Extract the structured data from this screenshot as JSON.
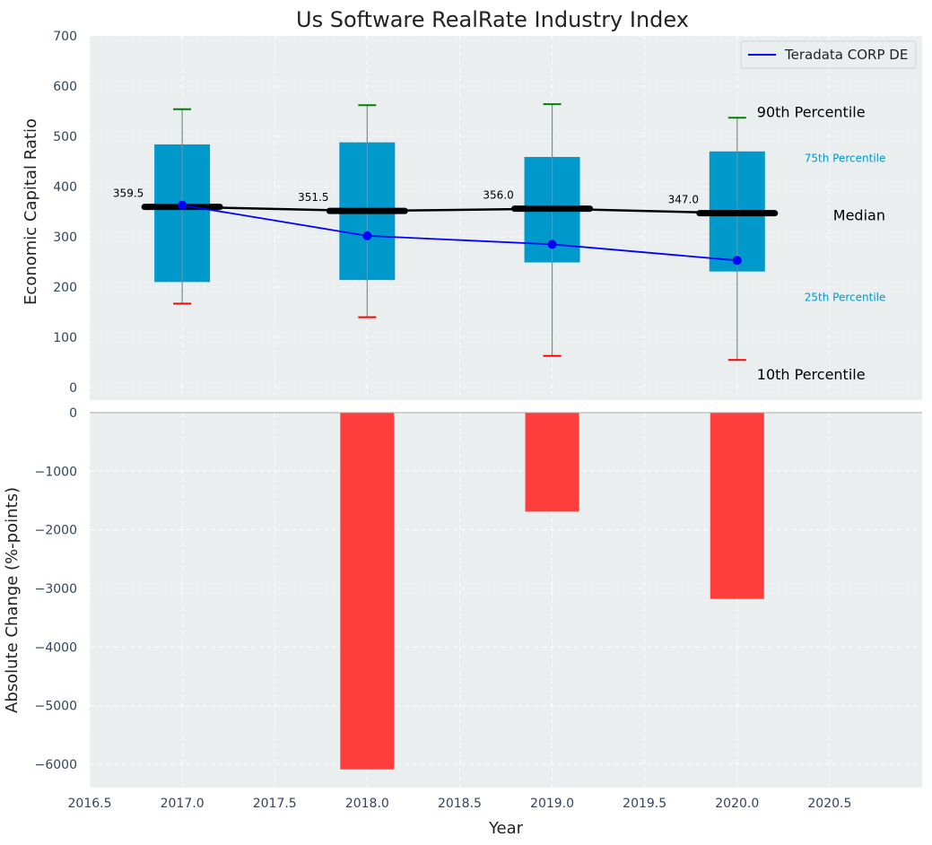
{
  "chart_data": [
    {
      "type": "box",
      "title": "Us Software RealRate Industry Index",
      "xlabel": "",
      "ylabel": "Economic Capital Ratio",
      "xlim": [
        2016.5,
        2021.0
      ],
      "ylim": [
        0,
        700
      ],
      "y_ticks": [
        "700",
        "600",
        "500",
        "400",
        "300",
        "200",
        "100",
        "0"
      ],
      "y_tick_values": [
        700,
        600,
        500,
        400,
        300,
        200,
        100,
        0
      ],
      "grid": true,
      "legend_position": "top-right",
      "legend": [
        {
          "label": "Teradata CORP DE",
          "color": "#0000ff"
        }
      ],
      "boxes": [
        {
          "x": 2017.0,
          "p10": 167,
          "p25": 210,
          "p75": 484,
          "p90": 554,
          "median": 359.5,
          "median_label": "359.5"
        },
        {
          "x": 2018.0,
          "p10": 140,
          "p25": 214,
          "p75": 488,
          "p90": 562,
          "median": 351.5,
          "median_label": "351.5"
        },
        {
          "x": 2019.0,
          "p10": 63,
          "p25": 249,
          "p75": 459,
          "p90": 564,
          "median": 356.0,
          "median_label": "356.0"
        },
        {
          "x": 2020.0,
          "p10": 55,
          "p25": 231,
          "p75": 470,
          "p90": 537,
          "median": 347.0,
          "median_label": "347.0"
        }
      ],
      "series": [
        {
          "name": "Teradata CORP DE",
          "x": [
            2017.0,
            2018.0,
            2019.0,
            2020.0
          ],
          "values": [
            363,
            302,
            285,
            253
          ],
          "color": "#0000ff"
        }
      ],
      "median_line_color": "#000000",
      "box_color": "#0099cc",
      "upper_whisker_cap_color": "#008000",
      "lower_whisker_cap_color": "#ff0000",
      "annotations": [
        {
          "text": "90th Percentile",
          "color": "#000000"
        },
        {
          "text": "75th Percentile",
          "color": "#0099cc"
        },
        {
          "text": "Median",
          "color": "#000000"
        },
        {
          "text": "25th Percentile",
          "color": "#0099cc"
        },
        {
          "text": "10th Percentile",
          "color": "#000000"
        }
      ]
    },
    {
      "type": "bar",
      "title": "",
      "xlabel": "Year",
      "ylabel": "Absolute Change (%-points)",
      "xlim": [
        2016.5,
        2021.0
      ],
      "ylim": [
        -6400,
        0
      ],
      "x_ticks": [
        "2016.5",
        "2017.0",
        "2017.5",
        "2018.0",
        "2018.5",
        "2019.0",
        "2019.5",
        "2020.0",
        "2020.5"
      ],
      "x_tick_values": [
        2016.5,
        2017.0,
        2017.5,
        2018.0,
        2018.5,
        2019.0,
        2019.5,
        2020.0,
        2020.5
      ],
      "y_ticks": [
        "0",
        "−1000",
        "−2000",
        "−3000",
        "−4000",
        "−5000",
        "−6000"
      ],
      "y_tick_values": [
        0,
        -1000,
        -2000,
        -3000,
        -4000,
        -5000,
        -6000
      ],
      "x": [
        2018.0,
        2019.0,
        2020.0
      ],
      "values": [
        -6090,
        -1690,
        -3180
      ],
      "bar_color": "#ff3333",
      "grid": true
    }
  ]
}
